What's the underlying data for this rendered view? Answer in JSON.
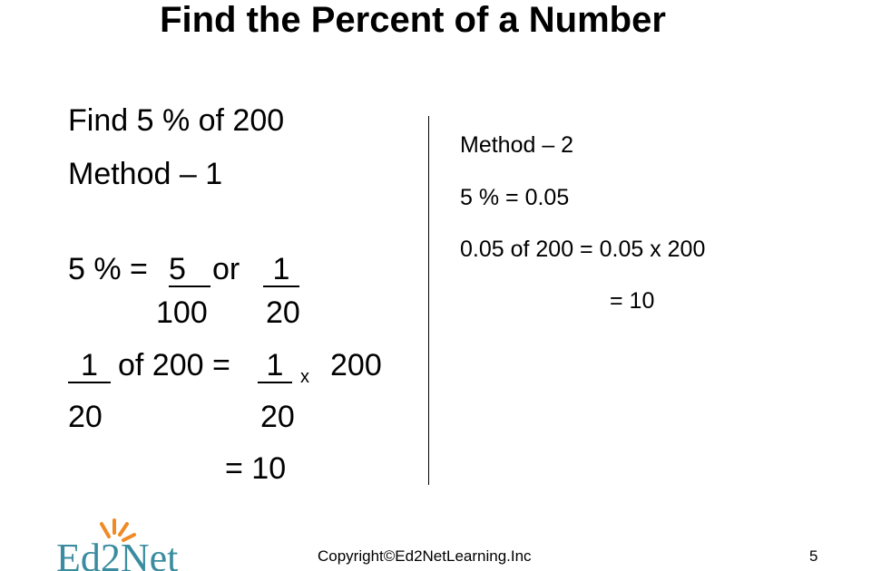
{
  "title": "Find the Percent of a Number",
  "method1": {
    "question": "Find 5 % of 200",
    "heading": "Method – 1",
    "step1": {
      "lhs": "5 % =",
      "num1": "5",
      "or": "or",
      "num2": "1",
      "den1": "100",
      "den2": "20"
    },
    "step2": {
      "num1": "1",
      "text": "of 200 =",
      "num2": "1",
      "times": "x",
      "factor": "200",
      "den1": "20",
      "den2": "20"
    },
    "result": "= 10"
  },
  "method2": {
    "heading": "Method – 2",
    "lines": [
      "5 % = 0.05",
      "0.05 of 200 = 0.05 x 200",
      "= 10"
    ]
  },
  "footer": {
    "logo": "Ed2Net",
    "copyright": "Copyright©Ed2NetLearning.Inc",
    "page": "5"
  }
}
